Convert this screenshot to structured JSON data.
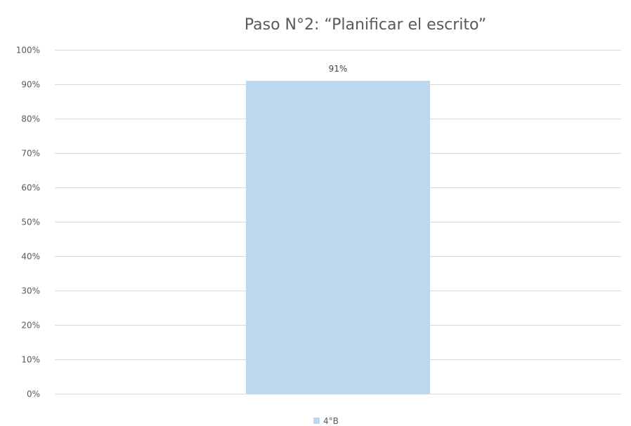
{
  "chart_data": {
    "type": "bar",
    "title": "Paso N°2: “Planificar el escrito”",
    "categories": [
      ""
    ],
    "series": [
      {
        "name": "4°B",
        "values": [
          0.91
        ],
        "data_labels": [
          "91%"
        ],
        "color": "#bdd7ee"
      }
    ],
    "ylim": [
      0,
      1
    ],
    "y_ticks": [
      0,
      0.1,
      0.2,
      0.3,
      0.4,
      0.5,
      0.6,
      0.7,
      0.8,
      0.9,
      1.0
    ],
    "y_tick_labels": [
      "0%",
      "10%",
      "20%",
      "30%",
      "40%",
      "50%",
      "60%",
      "70%",
      "80%",
      "90%",
      "100%"
    ],
    "grid": true,
    "legend_position": "bottom",
    "xlabel": "",
    "ylabel": ""
  },
  "colors": {
    "gridline": "#d9d9d9",
    "text": "#595959",
    "bar": "#bdd7ee"
  }
}
